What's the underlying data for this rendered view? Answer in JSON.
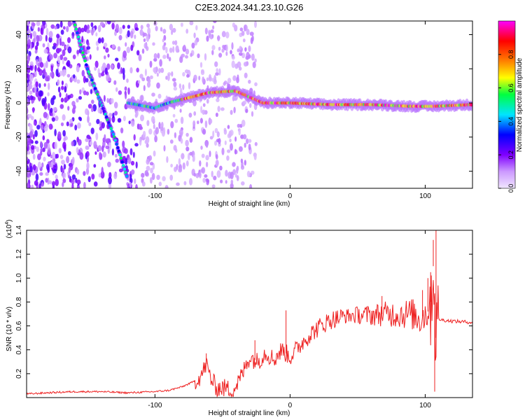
{
  "title": "C2E3.2024.341.23.10.G26",
  "chart_data": [
    {
      "type": "heatmap",
      "xlabel": "Height of straight line (km)",
      "ylabel": "Frequency (Hz)",
      "xlim": [
        -195,
        135
      ],
      "ylim": [
        -50,
        48
      ],
      "xticks": [
        -100,
        0,
        100
      ],
      "xtick_labels": [
        "-100",
        "0",
        "100"
      ],
      "yticks": [
        -40,
        -20,
        0,
        20,
        40
      ],
      "ytick_labels": [
        "-40",
        "-20",
        "0",
        "20",
        "40"
      ],
      "colorbar": {
        "label": "Normalized spectral amplitude",
        "range": [
          0.0,
          1.0
        ],
        "ticks": [
          0.0,
          0.2,
          0.4,
          0.6,
          0.8
        ],
        "tick_labels": [
          "0.0",
          "0.2",
          "0.4",
          "0.6",
          "0.8"
        ],
        "colors": [
          "#f0e6ff",
          "#cc99ff",
          "#8000ff",
          "#0000ff",
          "#00e5ff",
          "#00ff40",
          "#ffff00",
          "#ff8000",
          "#ff0000",
          "#ff00ff"
        ]
      },
      "features": [
        {
          "name": "main-trace",
          "points": [
            [
              -120,
              0
            ],
            [
              -100,
              -3
            ],
            [
              -90,
              0
            ],
            [
              -75,
              3
            ],
            [
              -60,
              6
            ],
            [
              -40,
              7
            ],
            [
              -20,
              0
            ],
            [
              -5,
              0
            ],
            [
              0,
              0
            ],
            [
              30,
              -1
            ],
            [
              60,
              -1
            ],
            [
              90,
              -2
            ],
            [
              105,
              -2
            ],
            [
              135,
              -1
            ]
          ],
          "peak_amplitude": 1.0
        },
        {
          "name": "satellite-streak",
          "points": [
            [
              -160,
              48
            ],
            [
              -150,
              20
            ],
            [
              -140,
              0
            ],
            [
              -130,
              -20
            ],
            [
              -120,
              -45
            ]
          ],
          "peak_amplitude": 0.55
        }
      ]
    },
    {
      "type": "line",
      "xlabel": "Height of straight line (km)",
      "ylabel": "SNR (10 * v/v)",
      "scale_label": "(x10",
      "scale_exponent": "4",
      "xlim": [
        -195,
        135
      ],
      "ylim": [
        0,
        1.4
      ],
      "xticks": [
        -100,
        0,
        100
      ],
      "xtick_labels": [
        "-100",
        "0",
        "100"
      ],
      "yticks": [
        0.2,
        0.4,
        0.6,
        0.8,
        1.0,
        1.2,
        1.4
      ],
      "ytick_labels": [
        "0.2",
        "0.4",
        "0.6",
        "0.8",
        "1.0",
        "1.2",
        "1.4"
      ],
      "series": [
        {
          "name": "SNR",
          "color": "#ee2222",
          "x": [
            -195,
            -180,
            -160,
            -140,
            -120,
            -100,
            -90,
            -80,
            -72,
            -66,
            -62,
            -58,
            -54,
            -48,
            -42,
            -36,
            -30,
            -24,
            -18,
            -12,
            -6,
            0,
            6,
            12,
            18,
            24,
            30,
            40,
            50,
            60,
            70,
            80,
            90,
            96,
            100,
            102,
            104,
            106,
            108,
            110,
            112,
            120,
            135
          ],
          "y": [
            0.03,
            0.04,
            0.05,
            0.05,
            0.04,
            0.05,
            0.06,
            0.09,
            0.13,
            0.18,
            0.28,
            0.14,
            0.08,
            0.08,
            0.06,
            0.18,
            0.34,
            0.3,
            0.38,
            0.32,
            0.4,
            0.34,
            0.42,
            0.5,
            0.56,
            0.61,
            0.65,
            0.68,
            0.69,
            0.69,
            0.7,
            0.7,
            0.7,
            0.66,
            0.7,
            0.72,
            0.8,
            1.1,
            0.5,
            0.66,
            0.65,
            0.64,
            0.63
          ],
          "spikes": [
            {
              "x": -62,
              "y": 0.37
            },
            {
              "x": -26,
              "y": 0.48
            },
            {
              "x": -3,
              "y": 0.73
            },
            {
              "x": 68,
              "y": 0.85
            },
            {
              "x": 98,
              "y": 0.9
            },
            {
              "x": 102,
              "y": 1.0
            },
            {
              "x": 104,
              "y": 1.05
            },
            {
              "x": 106,
              "y": 1.32
            },
            {
              "x": 108,
              "y": 1.4
            },
            {
              "x": 107,
              "y": 0.05
            }
          ]
        }
      ]
    }
  ]
}
